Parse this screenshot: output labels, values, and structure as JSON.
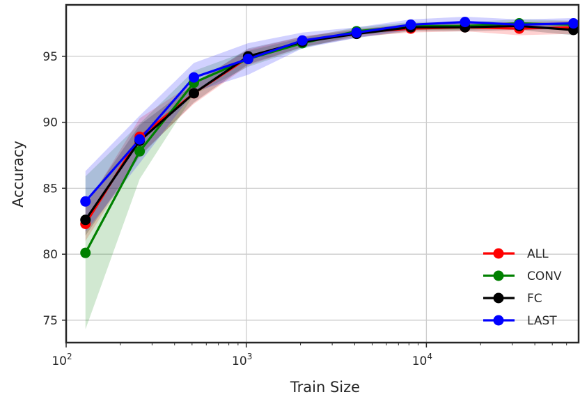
{
  "chart_data": {
    "type": "line",
    "xlabel": "Train Size",
    "ylabel": "Accuracy",
    "x_scale": "log",
    "xlim": [
      100,
      70000
    ],
    "ylim": [
      73.3,
      98.9
    ],
    "x_tick_labels": [
      {
        "base": "10",
        "exp": "2",
        "value": 100
      },
      {
        "base": "10",
        "exp": "3",
        "value": 1000
      },
      {
        "base": "10",
        "exp": "4",
        "value": 10000
      }
    ],
    "y_ticks": [
      75,
      80,
      85,
      90,
      95
    ],
    "grid": true,
    "legend_position": "lower-right",
    "x": [
      128,
      256,
      512,
      1024,
      2048,
      4096,
      8192,
      16384,
      32768,
      65536
    ],
    "series": [
      {
        "name": "ALL",
        "color": "#ff0000",
        "values": [
          82.3,
          88.9,
          92.2,
          94.9,
          96.1,
          96.8,
          97.1,
          97.2,
          97.1,
          97.2
        ],
        "lower": [
          81.0,
          87.5,
          91.4,
          94.3,
          95.7,
          96.5,
          96.8,
          96.9,
          96.6,
          96.7
        ],
        "upper": [
          83.6,
          90.3,
          93.0,
          95.5,
          96.5,
          97.1,
          97.4,
          97.5,
          97.6,
          97.7
        ]
      },
      {
        "name": "CONV",
        "color": "#008000",
        "values": [
          80.1,
          87.8,
          93.0,
          94.8,
          96.0,
          96.9,
          97.3,
          97.3,
          97.5,
          97.4
        ],
        "lower": [
          74.3,
          85.7,
          92.1,
          94.2,
          95.6,
          96.6,
          97.0,
          97.0,
          97.2,
          97.1
        ],
        "upper": [
          85.9,
          89.9,
          93.9,
          95.4,
          96.4,
          97.2,
          97.6,
          97.6,
          97.8,
          97.7
        ]
      },
      {
        "name": "FC",
        "color": "#000000",
        "values": [
          82.6,
          88.6,
          92.2,
          95.0,
          96.1,
          96.7,
          97.2,
          97.2,
          97.3,
          97.0
        ],
        "lower": [
          81.4,
          87.4,
          91.5,
          94.4,
          95.7,
          96.4,
          96.9,
          96.9,
          97.0,
          96.6
        ],
        "upper": [
          83.8,
          89.8,
          92.9,
          95.6,
          96.5,
          97.0,
          97.5,
          97.5,
          97.6,
          97.4
        ]
      },
      {
        "name": "LAST",
        "color": "#0000ff",
        "values": [
          84.0,
          88.7,
          93.4,
          94.8,
          96.2,
          96.8,
          97.4,
          97.6,
          97.4,
          97.5
        ],
        "lower": [
          81.7,
          86.9,
          92.3,
          93.6,
          95.6,
          96.4,
          97.0,
          97.2,
          97.0,
          97.1
        ],
        "upper": [
          86.3,
          90.5,
          94.5,
          96.0,
          96.8,
          97.2,
          97.8,
          98.0,
          97.8,
          97.9
        ]
      }
    ]
  }
}
